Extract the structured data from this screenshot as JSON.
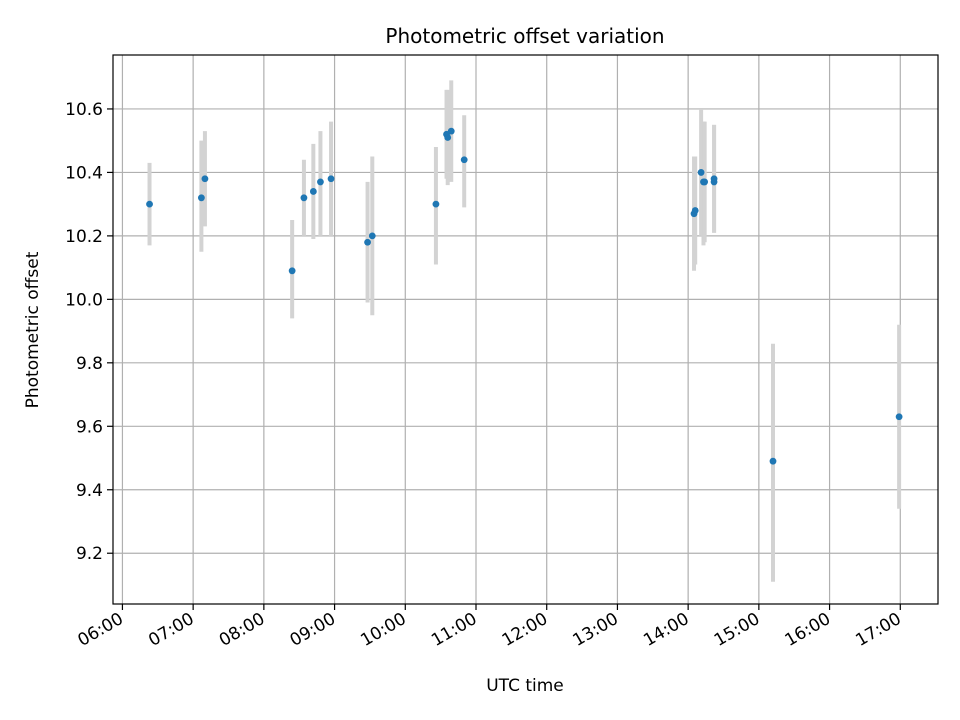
{
  "chart_data": {
    "type": "scatter",
    "title": "Photometric offset variation",
    "xlabel": "UTC time",
    "ylabel": "Photometric offset",
    "grid": true,
    "x_ticks": [
      "06:00",
      "07:00",
      "08:00",
      "09:00",
      "10:00",
      "11:00",
      "12:00",
      "13:00",
      "14:00",
      "15:00",
      "16:00",
      "17:00"
    ],
    "y_ticks": [
      "9.2",
      "9.4",
      "9.6",
      "9.8",
      "10.0",
      "10.2",
      "10.4",
      "10.6"
    ],
    "xlim": [
      "05:52",
      "17:32"
    ],
    "ylim": [
      9.04,
      10.77
    ],
    "colors": {
      "points": "#1f77b4",
      "error_bars": "#d3d3d3",
      "grid": "#b0b0b0"
    },
    "points": [
      {
        "x": "06:23",
        "y": 10.3,
        "err_low": 10.17,
        "err_high": 10.43
      },
      {
        "x": "07:07",
        "y": 10.32,
        "err_low": 10.15,
        "err_high": 10.5
      },
      {
        "x": "07:10",
        "y": 10.38,
        "err_low": 10.23,
        "err_high": 10.53
      },
      {
        "x": "08:24",
        "y": 10.09,
        "err_low": 9.94,
        "err_high": 10.25
      },
      {
        "x": "08:34",
        "y": 10.32,
        "err_low": 10.2,
        "err_high": 10.44
      },
      {
        "x": "08:42",
        "y": 10.34,
        "err_low": 10.19,
        "err_high": 10.49
      },
      {
        "x": "08:48",
        "y": 10.37,
        "err_low": 10.2,
        "err_high": 10.53
      },
      {
        "x": "08:57",
        "y": 10.38,
        "err_low": 10.2,
        "err_high": 10.56
      },
      {
        "x": "09:28",
        "y": 10.18,
        "err_low": 9.99,
        "err_high": 10.37
      },
      {
        "x": "09:32",
        "y": 10.2,
        "err_low": 9.95,
        "err_high": 10.45
      },
      {
        "x": "10:26",
        "y": 10.3,
        "err_low": 10.11,
        "err_high": 10.48
      },
      {
        "x": "10:35",
        "y": 10.52,
        "err_low": 10.38,
        "err_high": 10.66
      },
      {
        "x": "10:36",
        "y": 10.51,
        "err_low": 10.36,
        "err_high": 10.66
      },
      {
        "x": "10:39",
        "y": 10.53,
        "err_low": 10.37,
        "err_high": 10.69
      },
      {
        "x": "10:50",
        "y": 10.44,
        "err_low": 10.29,
        "err_high": 10.58
      },
      {
        "x": "14:05",
        "y": 10.27,
        "err_low": 10.09,
        "err_high": 10.45
      },
      {
        "x": "14:06",
        "y": 10.28,
        "err_low": 10.11,
        "err_high": 10.45
      },
      {
        "x": "14:11",
        "y": 10.4,
        "err_low": 10.2,
        "err_high": 10.6
      },
      {
        "x": "14:13",
        "y": 10.37,
        "err_low": 10.17,
        "err_high": 10.56
      },
      {
        "x": "14:14",
        "y": 10.37,
        "err_low": 10.18,
        "err_high": 10.56
      },
      {
        "x": "14:22",
        "y": 10.38,
        "err_low": 10.21,
        "err_high": 10.55
      },
      {
        "x": "14:22",
        "y": 10.37,
        "err_low": 10.21,
        "err_high": 10.55
      },
      {
        "x": "15:12",
        "y": 9.49,
        "err_low": 9.11,
        "err_high": 9.86
      },
      {
        "x": "16:59",
        "y": 9.63,
        "err_low": 9.34,
        "err_high": 9.92
      }
    ]
  }
}
